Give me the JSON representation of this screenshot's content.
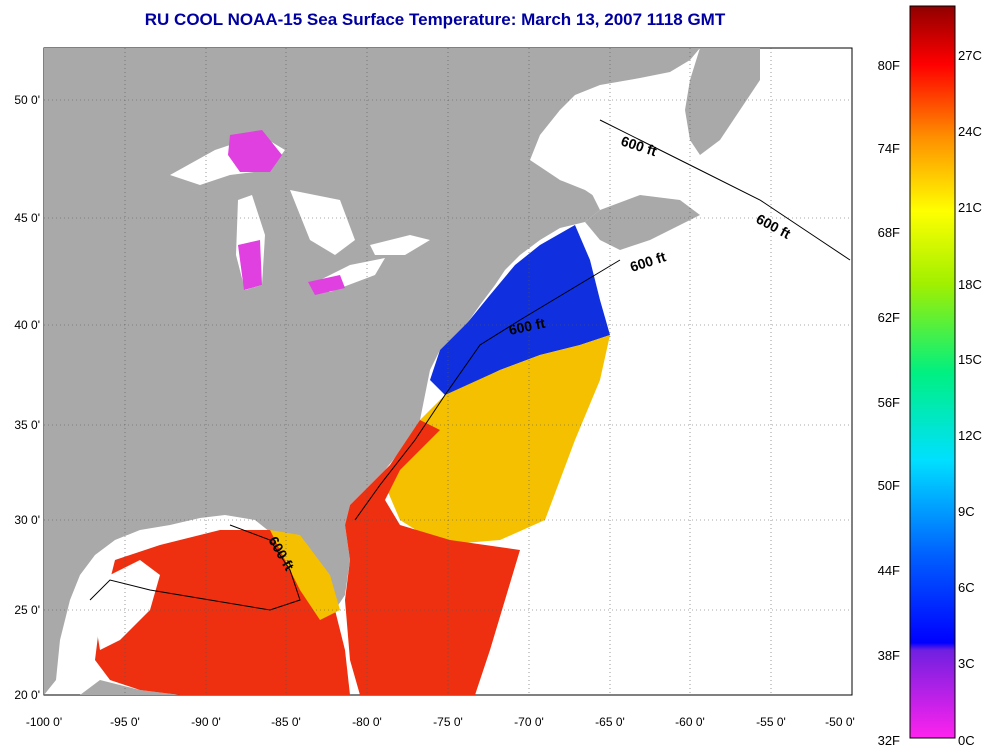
{
  "title": "RU COOL  NOAA-15  Sea Surface Temperature:  March 13, 2007 1118 GMT",
  "map": {
    "lon_labels": [
      "-100 0'",
      "-95 0'",
      "-90 0'",
      "-85 0'",
      "-80 0'",
      "-75 0'",
      "-70 0'",
      "-65 0'",
      "-60 0'",
      "-55 0'",
      "-50 0'"
    ],
    "lat_labels": [
      "50 0'",
      "45 0'",
      "40 0'",
      "35 0'",
      "30 0'",
      "25 0'",
      "20 0'"
    ],
    "contour_label": "600 ft",
    "colors": {
      "land": "#a9a9a9",
      "cloud_or_nodata": "#ffffff",
      "warm": "#ee3010",
      "mild": "#f5c000",
      "cold": "#1030e0",
      "freezing": "#e040e0"
    }
  },
  "colorbar": {
    "fahrenheit_labels": [
      "80F",
      "74F",
      "68F",
      "62F",
      "56F",
      "50F",
      "44F",
      "38F",
      "32F"
    ],
    "celsius_labels": [
      "27C",
      "24C",
      "21C",
      "18C",
      "15C",
      "12C",
      "9C",
      "6C",
      "3C",
      "0C"
    ]
  }
}
